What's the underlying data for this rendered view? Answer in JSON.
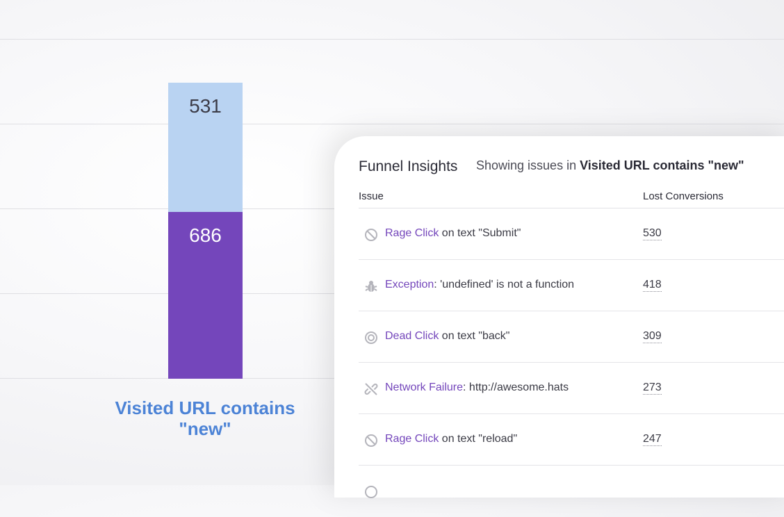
{
  "chart": {
    "top_value": "531",
    "bottom_value": "686",
    "caption": "Visited URL contains \"new\""
  },
  "chart_data": {
    "type": "bar",
    "categories": [
      "Visited URL contains \"new\""
    ],
    "series": [
      {
        "values": [
          686
        ]
      },
      {
        "values": [
          531
        ]
      }
    ]
  },
  "panel": {
    "title": "Funnel Insights",
    "subtitle_prefix": "Showing issues in ",
    "subtitle_bold": "Visited URL contains \"new\"",
    "columns": {
      "issue": "Issue",
      "lost": "Lost Conversions"
    },
    "rows": [
      {
        "icon": "rage-click-icon",
        "type": "Rage Click",
        "detail": " on text \"Submit\"",
        "count": "530"
      },
      {
        "icon": "bug-icon",
        "type": "Exception",
        "detail": ": 'undefined' is not a function",
        "count": "418"
      },
      {
        "icon": "dead-click-icon",
        "type": "Dead Click",
        "detail": " on text \"back\"",
        "count": "309"
      },
      {
        "icon": "broken-link-icon",
        "type": "Network Failure",
        "detail": ": http://awesome.hats",
        "count": "273"
      },
      {
        "icon": "rage-click-icon",
        "type": "Rage Click",
        "detail": " on text \"reload\"",
        "count": "247"
      }
    ]
  },
  "colors": {
    "accent_purple": "#7446bb",
    "bar_light_blue": "#b9d3f2",
    "caption_blue": "#4c83d6"
  }
}
